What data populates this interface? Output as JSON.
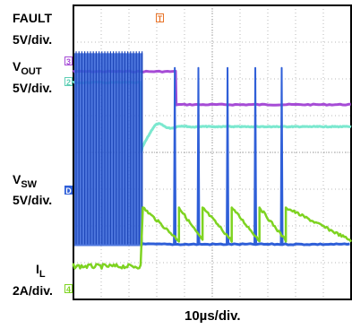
{
  "labels": {
    "fault": "FAULT",
    "fault_scale": "5V/div.",
    "vout_main": "V",
    "vout_sub": "OUT",
    "vout_scale": "5V/div.",
    "vsw_main": "V",
    "vsw_sub": "SW",
    "vsw_scale": "5V/div.",
    "il_main": "I",
    "il_sub": "L",
    "il_scale": "2A/div.",
    "time_scale": "10µs/div."
  },
  "markers": {
    "trigger": "T",
    "ch3": "3",
    "ch2": "2",
    "ch1": "D",
    "ch4": "4"
  },
  "colors": {
    "fault": "#a64cd6",
    "vout": "#7be8cf",
    "vsw": "#2f5fd8",
    "il": "#7ed321",
    "trigger": "#e8742a",
    "grid": "#b8b8b8"
  },
  "chart_data": {
    "type": "line",
    "title": "",
    "xlabel": "10µs/div.",
    "grid": true,
    "x_divisions": 10,
    "y_divisions": 8,
    "series": [
      {
        "name": "FAULT",
        "scale": "5V/div.",
        "x": [
          0,
          3.7,
          3.7,
          10
        ],
        "y": [
          6.2,
          6.2,
          5.3,
          5.3
        ]
      },
      {
        "name": "VOUT",
        "scale": "5V/div.",
        "x": [
          0,
          2.45,
          2.6,
          10
        ],
        "y": [
          5.9,
          5.9,
          4.0,
          4.7
        ]
      },
      {
        "name": "VSW",
        "scale": "5V/div.",
        "switching_end_div": 2.5,
        "pulses_div": [
          3.65,
          4.5,
          5.55,
          6.55,
          7.5
        ]
      },
      {
        "name": "IL",
        "scale": "2A/div.",
        "x": [
          0,
          2.45,
          2.5,
          10
        ],
        "y": [
          0.9,
          0.9,
          2.5,
          1.8
        ]
      }
    ]
  }
}
